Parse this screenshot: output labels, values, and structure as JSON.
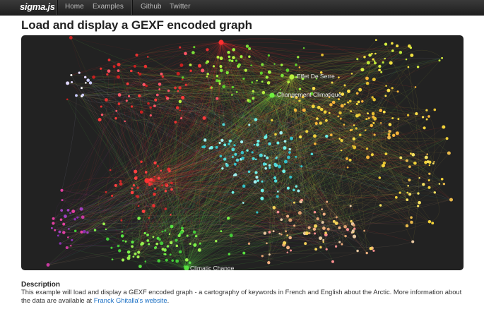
{
  "navbar": {
    "brand": "sigma.js",
    "links": [
      "Home",
      "Examples",
      "Github",
      "Twitter"
    ]
  },
  "page": {
    "title": "Load and display a GEXF encoded graph"
  },
  "graph": {
    "labels": [
      "Effet De Serre",
      "Changement Climatique",
      "Climatic Change"
    ],
    "background": "#222222"
  },
  "description": {
    "heading": "Description",
    "text": "This example will load and display a GEXF encoded graph - a cartography of keywords in French and English about the Arctic. More information about the data are available at ",
    "link_text": "Franck Ghitalla's website",
    "end": "."
  }
}
